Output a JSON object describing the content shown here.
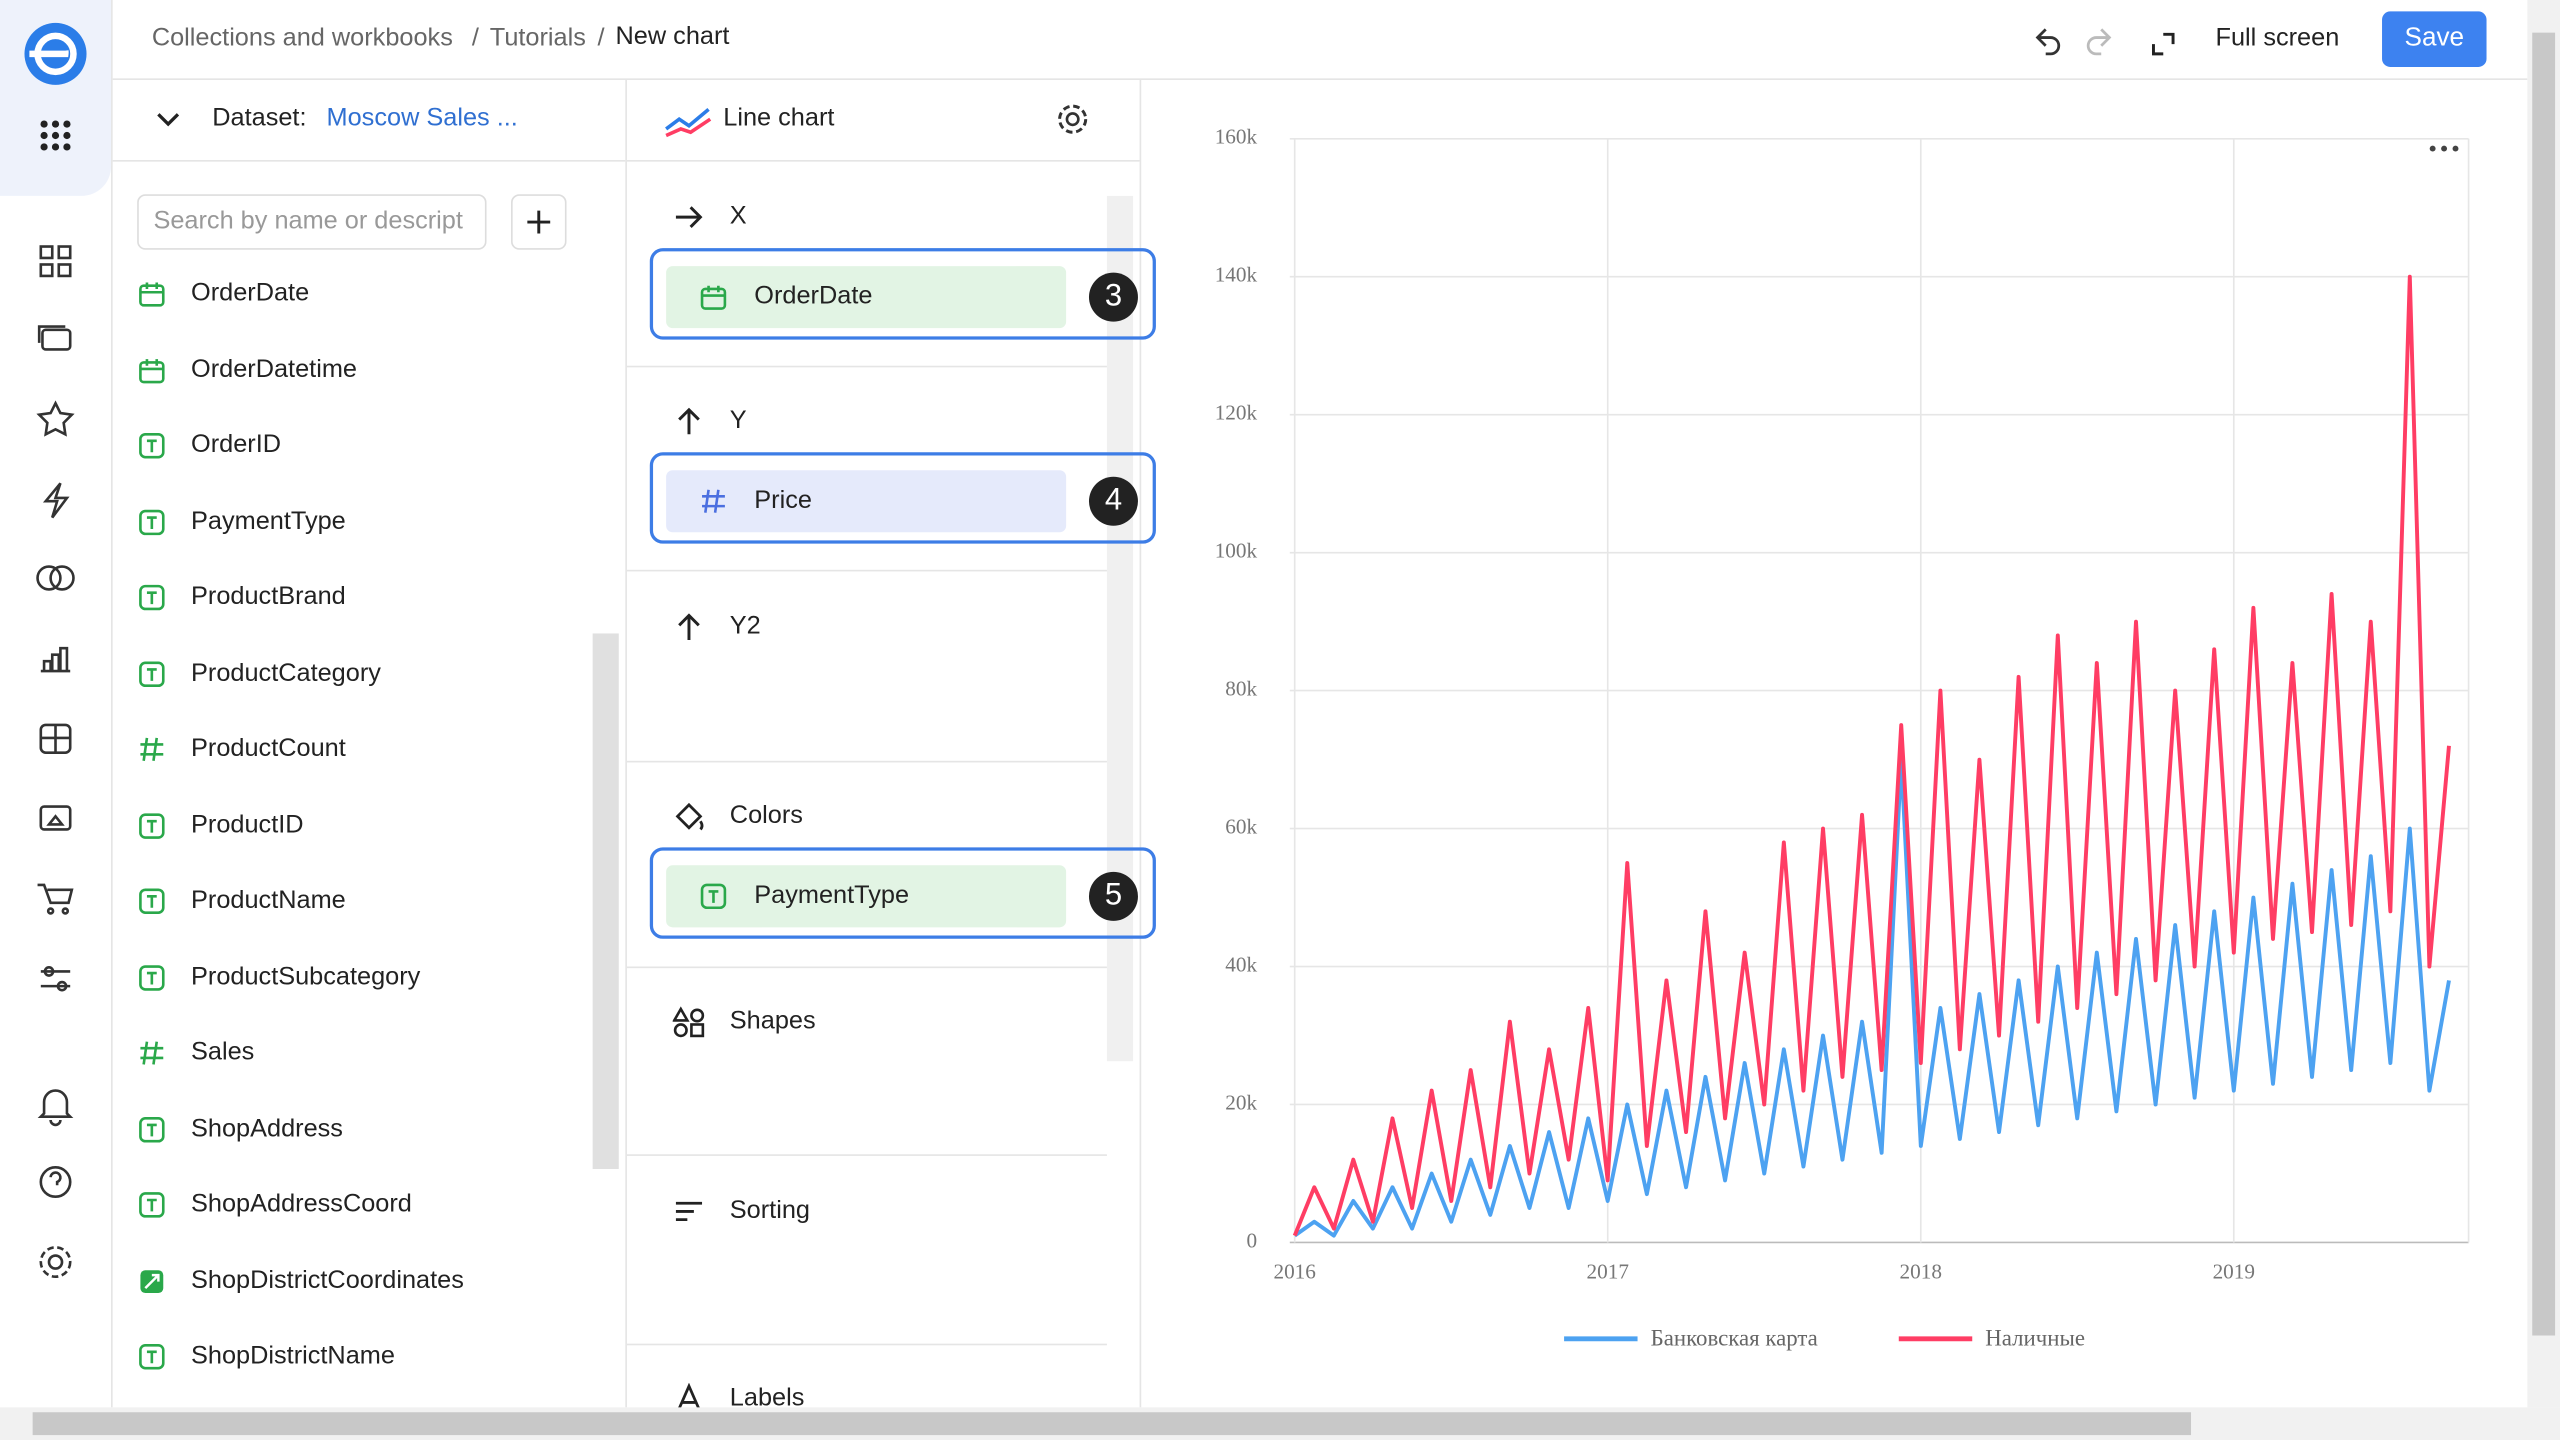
{
  "header": {
    "breadcrumbs": [
      "Collections and workbooks",
      "Tutorials",
      "New chart"
    ],
    "separator": "/",
    "full_screen": "Full screen",
    "save": "Save"
  },
  "dataset": {
    "label": "Dataset:",
    "name": "Moscow Sales ...",
    "search_placeholder": "Search by name or descript",
    "fields": [
      "OrderDate",
      "OrderDatetime",
      "OrderID",
      "PaymentType",
      "ProductBrand",
      "ProductCategory",
      "ProductCount",
      "ProductID",
      "ProductName",
      "ProductSubcategory",
      "Sales",
      "ShopAddress",
      "ShopAddressCoord",
      "ShopDistrictCoordinates",
      "ShopDistrictName"
    ]
  },
  "wizard": {
    "chart_type": "Line chart",
    "sections": [
      {
        "title": "X",
        "item": "OrderDate",
        "badge": 3
      },
      {
        "title": "Y",
        "item": "Price",
        "badge": 4
      },
      {
        "title": "Y2"
      },
      {
        "title": "Colors",
        "item": "PaymentType",
        "badge": 5
      },
      {
        "title": "Shapes"
      },
      {
        "title": "Sorting"
      },
      {
        "title": "Labels"
      }
    ]
  },
  "chart_data": {
    "type": "line",
    "x": [
      2016,
      2016.0625,
      2016.125,
      2016.1875,
      2016.25,
      2016.3125,
      2016.375,
      2016.4375,
      2016.5,
      2016.5625,
      2016.625,
      2016.6875,
      2016.75,
      2016.8125,
      2016.875,
      2016.9375,
      2017,
      2017.0625,
      2017.125,
      2017.1875,
      2017.25,
      2017.3125,
      2017.375,
      2017.4375,
      2017.5,
      2017.5625,
      2017.625,
      2017.6875,
      2017.75,
      2017.8125,
      2017.875,
      2017.9375,
      2018,
      2018.0625,
      2018.125,
      2018.1875,
      2018.25,
      2018.3125,
      2018.375,
      2018.4375,
      2018.5,
      2018.5625,
      2018.625,
      2018.6875,
      2018.75,
      2018.8125,
      2018.875,
      2018.9375,
      2019,
      2019.0625,
      2019.125,
      2019.1875,
      2019.25,
      2019.3125,
      2019.375,
      2019.4375,
      2019.5,
      2019.5625,
      2019.625,
      2019.6875
    ],
    "series": [
      {
        "name": "Банковская карта",
        "color": "#4da2f1",
        "values": [
          1000,
          3000,
          1000,
          6000,
          2000,
          8000,
          2000,
          10000,
          3000,
          12000,
          4000,
          14000,
          5000,
          16000,
          5000,
          18000,
          6000,
          20000,
          7000,
          22000,
          8000,
          24000,
          9000,
          26000,
          10000,
          28000,
          11000,
          30000,
          12000,
          32000,
          13000,
          70000,
          14000,
          34000,
          15000,
          36000,
          16000,
          38000,
          17000,
          40000,
          18000,
          42000,
          19000,
          44000,
          20000,
          46000,
          21000,
          48000,
          22000,
          50000,
          23000,
          52000,
          24000,
          54000,
          25000,
          56000,
          26000,
          60000,
          22000,
          38000
        ]
      },
      {
        "name": "Наличные",
        "color": "#ff3d64",
        "values": [
          1000,
          8000,
          2000,
          12000,
          3000,
          18000,
          5000,
          22000,
          6000,
          25000,
          8000,
          32000,
          10000,
          28000,
          12000,
          34000,
          9000,
          55000,
          14000,
          38000,
          16000,
          48000,
          18000,
          42000,
          20000,
          58000,
          22000,
          60000,
          24000,
          62000,
          25000,
          75000,
          26000,
          80000,
          28000,
          70000,
          30000,
          82000,
          32000,
          88000,
          34000,
          84000,
          36000,
          90000,
          38000,
          80000,
          40000,
          86000,
          42000,
          92000,
          44000,
          84000,
          45000,
          94000,
          46000,
          90000,
          48000,
          140000,
          40000,
          72000
        ]
      }
    ],
    "xlim": [
      2016,
      2019.75
    ],
    "xticks": [
      2016,
      2017,
      2018,
      2019
    ],
    "ylim": [
      0,
      160000
    ],
    "yticks": [
      {
        "value": 0,
        "label": "0"
      },
      {
        "value": 20000,
        "label": "20k"
      },
      {
        "value": 40000,
        "label": "40k"
      },
      {
        "value": 60000,
        "label": "60k"
      },
      {
        "value": 80000,
        "label": "80k"
      },
      {
        "value": 100000,
        "label": "100k"
      },
      {
        "value": 120000,
        "label": "120k"
      },
      {
        "value": 140000,
        "label": "140k"
      },
      {
        "value": 160000,
        "label": "160k"
      }
    ],
    "grid": true,
    "legend": "bottom"
  }
}
